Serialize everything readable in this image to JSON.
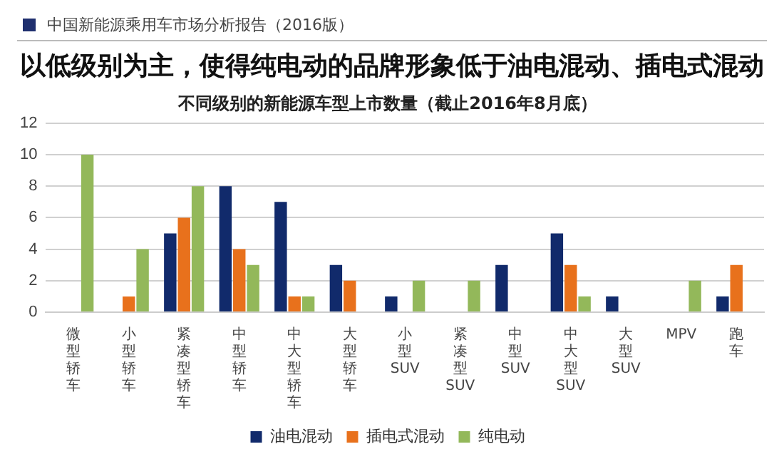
{
  "chart_data": {
    "type": "bar",
    "title": "以低级别为主，使得纯电动的品牌形象低于油电混动、插电式混动",
    "subtitle": "不同级别的新能源车型上市数量（截止2016年8月底）",
    "annotations": [
      "中国新能源乘用车市场分析报告（2016版）"
    ],
    "categories": [
      "微型轿车",
      "小型轿车",
      "紧凑型轿车",
      "中型轿车",
      "中大型轿车",
      "大型轿车",
      "小型SUV",
      "紧凑型SUV",
      "中型SUV",
      "中大型SUV",
      "大型SUV",
      "MPV",
      "跑车"
    ],
    "series": [
      {
        "name": "油电混动",
        "color": "#112a6b",
        "values": [
          0,
          0,
          5,
          8,
          7,
          3,
          1,
          0,
          3,
          5,
          1,
          0,
          1
        ]
      },
      {
        "name": "插电式混动",
        "color": "#e8711c",
        "values": [
          0,
          1,
          6,
          4,
          1,
          2,
          0,
          0,
          0,
          3,
          0,
          0,
          3
        ]
      },
      {
        "name": "纯电动",
        "color": "#93b85a",
        "values": [
          10,
          4,
          8,
          3,
          1,
          0,
          2,
          2,
          0,
          1,
          0,
          2,
          0
        ]
      }
    ],
    "ylim": [
      0,
      12
    ],
    "yticks": [
      0,
      2,
      4,
      6,
      8,
      10,
      12
    ],
    "grid": "y",
    "legend": "bottom"
  }
}
